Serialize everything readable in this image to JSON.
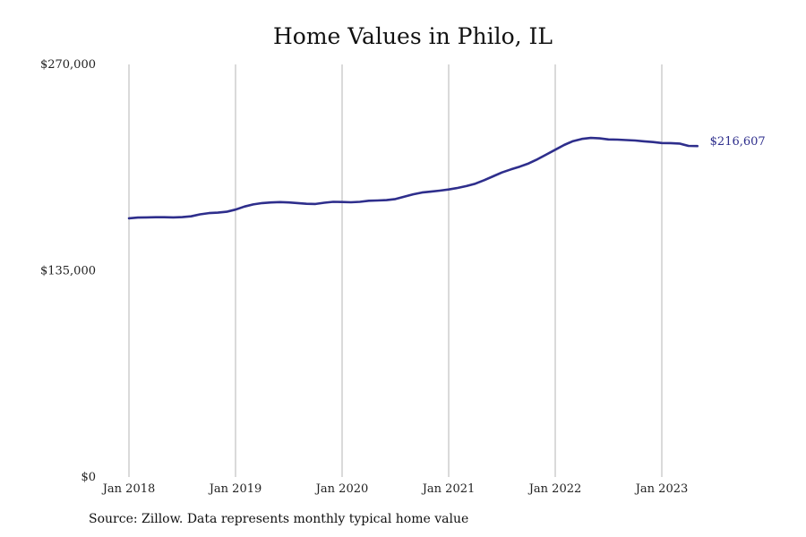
{
  "chart_data": {
    "type": "line",
    "title": "Home Values in Philo, IL",
    "source": "Source: Zillow. Data represents monthly typical home value",
    "ylim": [
      0,
      270000
    ],
    "y_ticks": [
      {
        "value": 0,
        "label": "$0"
      },
      {
        "value": 135000,
        "label": "$135,000"
      },
      {
        "value": 270000,
        "label": "$270,000"
      }
    ],
    "x_ticks": [
      "Jan 2018",
      "Jan 2019",
      "Jan 2020",
      "Jan 2021",
      "Jan 2022",
      "Jan 2023"
    ],
    "grid": "vertical",
    "line_color": "#2e2e8c",
    "end_label": "$216,607",
    "series": [
      {
        "x": [
          "2018-01",
          "2018-02",
          "2018-03",
          "2018-04",
          "2018-05",
          "2018-06",
          "2018-07",
          "2018-08",
          "2018-09",
          "2018-10",
          "2018-11",
          "2018-12",
          "2019-01",
          "2019-02",
          "2019-03",
          "2019-04",
          "2019-05",
          "2019-06",
          "2019-07",
          "2019-08",
          "2019-09",
          "2019-10",
          "2019-11",
          "2019-12",
          "2020-01",
          "2020-02",
          "2020-03",
          "2020-04",
          "2020-05",
          "2020-06",
          "2020-07",
          "2020-08",
          "2020-09",
          "2020-10",
          "2020-11",
          "2020-12",
          "2021-01",
          "2021-02",
          "2021-03",
          "2021-04",
          "2021-05",
          "2021-06",
          "2021-07",
          "2021-08",
          "2021-09",
          "2021-10",
          "2021-11",
          "2021-12",
          "2022-01",
          "2022-02",
          "2022-03",
          "2022-04",
          "2022-05",
          "2022-06",
          "2022-07",
          "2022-08",
          "2022-09",
          "2022-10",
          "2022-11",
          "2022-12",
          "2023-01",
          "2023-02",
          "2023-03",
          "2023-04",
          "2023-05"
        ],
        "values": [
          169300,
          169800,
          169900,
          170000,
          170000,
          169900,
          170100,
          170600,
          171900,
          172700,
          173000,
          173600,
          175000,
          177000,
          178400,
          179300,
          179700,
          179900,
          179700,
          179300,
          178800,
          178700,
          179500,
          180100,
          180000,
          179800,
          180100,
          180800,
          181000,
          181200,
          181900,
          183500,
          185000,
          186200,
          186800,
          187400,
          188200,
          189200,
          190400,
          192000,
          194300,
          196800,
          199300,
          201300,
          203100,
          205200,
          208000,
          211100,
          214200,
          217300,
          219800,
          221300,
          221900,
          221600,
          220900,
          220800,
          220500,
          220200,
          219700,
          219200,
          218600,
          218500,
          218200,
          216700,
          216607
        ]
      }
    ]
  }
}
